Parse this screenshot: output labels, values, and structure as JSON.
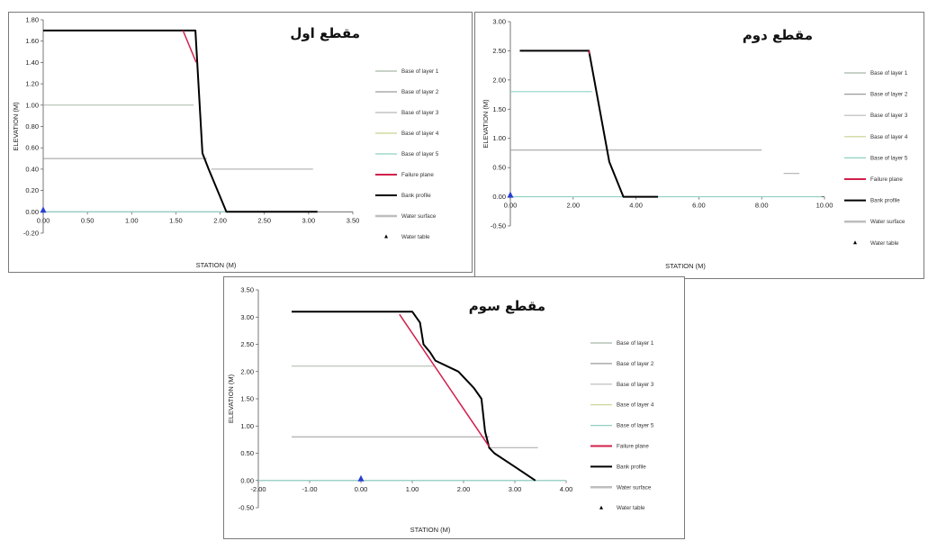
{
  "legend_labels": [
    "Base of layer 1",
    "Base of layer 2",
    "Base of layer 3",
    "Base of layer 4",
    "Base of layer 5",
    "Failure plane",
    "Bank profile",
    "Water surface",
    "Water table"
  ],
  "colors": {
    "layer1": "#a8b8a8",
    "layer2": "#9a9a9a",
    "layer3": "#b8b8b8",
    "layer4": "#c9cf8f",
    "layer5": "#8fd0c4",
    "failure": "#d21f4a",
    "bank": "#000000",
    "water_surface": "#bdbdbd",
    "water_table": "#2a3fd1"
  },
  "chart_data": [
    {
      "type": "line",
      "title": "مقطع اول",
      "xlabel": "STATION (M)",
      "ylabel": "ELEVATION (M)",
      "xlim": [
        0,
        3.5
      ],
      "ylim": [
        -0.2,
        1.8
      ],
      "xticks": [
        "0.00",
        "0.50",
        "1.00",
        "1.50",
        "2.00",
        "2.50",
        "3.00",
        "3.50"
      ],
      "yticks": [
        "-0.20",
        "0.00",
        "0.20",
        "0.40",
        "0.60",
        "0.80",
        "1.00",
        "1.20",
        "1.40",
        "1.60",
        "1.80"
      ],
      "series": [
        {
          "key": "layer1",
          "points": [
            [
              0,
              1.0
            ],
            [
              1.7,
              1.0
            ]
          ]
        },
        {
          "key": "layer2",
          "points": [
            [
              0,
              0.5
            ],
            [
              1.85,
              0.5
            ]
          ]
        },
        {
          "key": "layer3",
          "points": [
            [
              1.9,
              0.4
            ],
            [
              3.05,
              0.4
            ]
          ]
        },
        {
          "key": "layer5",
          "points": [
            [
              0,
              0.0
            ],
            [
              3.1,
              0.0
            ]
          ]
        },
        {
          "key": "bank",
          "points": [
            [
              0,
              1.7
            ],
            [
              1.72,
              1.7
            ],
            [
              1.8,
              0.55
            ],
            [
              1.87,
              0.4
            ],
            [
              2.07,
              0.0
            ],
            [
              3.1,
              0.0
            ]
          ]
        },
        {
          "key": "failure",
          "points": [
            [
              1.58,
              1.7
            ],
            [
              1.73,
              1.4
            ]
          ]
        }
      ],
      "water_table": [
        0,
        0
      ],
      "grid": false,
      "legend": "right"
    },
    {
      "type": "line",
      "title": "مقطع دوم",
      "xlabel": "STATION (M)",
      "ylabel": "ELEVATION (M)",
      "xlim": [
        0,
        10
      ],
      "ylim": [
        -0.5,
        3.0
      ],
      "xticks": [
        "0.00",
        "2.00",
        "4.00",
        "6.00",
        "8.00",
        "10.00"
      ],
      "yticks": [
        "-0.50",
        "0.00",
        "0.50",
        "1.00",
        "1.50",
        "2.00",
        "2.50",
        "3.00"
      ],
      "series": [
        {
          "key": "layer5",
          "points": [
            [
              0,
              1.8
            ],
            [
              2.6,
              1.8
            ]
          ]
        },
        {
          "key": "layer2",
          "points": [
            [
              0,
              0.8
            ],
            [
              8.0,
              0.8
            ]
          ]
        },
        {
          "key": "layer3",
          "points": [
            [
              8.7,
              0.4
            ],
            [
              9.2,
              0.4
            ]
          ]
        },
        {
          "key": "layer5",
          "points": [
            [
              0,
              0.0
            ],
            [
              9.9,
              0.0
            ]
          ]
        },
        {
          "key": "bank",
          "points": [
            [
              0.3,
              2.5
            ],
            [
              2.5,
              2.5
            ],
            [
              3.15,
              0.6
            ],
            [
              3.6,
              0.0
            ],
            [
              4.7,
              0.0
            ]
          ]
        },
        {
          "key": "failure",
          "points": [
            [
              2.5,
              2.5
            ],
            [
              2.52,
              2.45
            ]
          ]
        }
      ],
      "water_table": [
        0,
        0
      ],
      "grid": false,
      "legend": "right"
    },
    {
      "type": "line",
      "title": "مقطع سوم",
      "xlabel": "STATION (M)",
      "ylabel": "ELEVATION (M)",
      "xlim": [
        -2,
        4
      ],
      "ylim": [
        -0.5,
        3.5
      ],
      "xticks": [
        "-2.00",
        "-1.00",
        "0.00",
        "1.00",
        "2.00",
        "3.00",
        "4.00"
      ],
      "yticks": [
        "-0.50",
        "0.00",
        "0.50",
        "1.00",
        "1.50",
        "2.00",
        "2.50",
        "3.00",
        "3.50"
      ],
      "series": [
        {
          "key": "layer1",
          "points": [
            [
              -1.35,
              2.1
            ],
            [
              1.45,
              2.1
            ]
          ]
        },
        {
          "key": "layer2",
          "points": [
            [
              -1.35,
              0.8
            ],
            [
              2.5,
              0.8
            ]
          ]
        },
        {
          "key": "layer3",
          "points": [
            [
              2.5,
              0.6
            ],
            [
              3.45,
              0.6
            ]
          ]
        },
        {
          "key": "layer5",
          "points": [
            [
              -2,
              0.0
            ],
            [
              4,
              0.0
            ]
          ]
        },
        {
          "key": "bank",
          "points": [
            [
              -1.35,
              3.1
            ],
            [
              1.0,
              3.1
            ],
            [
              1.15,
              2.9
            ],
            [
              1.22,
              2.5
            ],
            [
              1.35,
              2.35
            ],
            [
              1.45,
              2.2
            ],
            [
              1.9,
              2.0
            ],
            [
              2.2,
              1.7
            ],
            [
              2.35,
              1.5
            ],
            [
              2.42,
              0.9
            ],
            [
              2.5,
              0.6
            ],
            [
              2.6,
              0.5
            ],
            [
              3.0,
              0.25
            ],
            [
              3.4,
              0.0
            ]
          ]
        },
        {
          "key": "failure",
          "points": [
            [
              0.75,
              3.05
            ],
            [
              2.5,
              0.62
            ]
          ]
        }
      ],
      "water_table": [
        0,
        0
      ],
      "grid": false,
      "legend": "right"
    }
  ]
}
